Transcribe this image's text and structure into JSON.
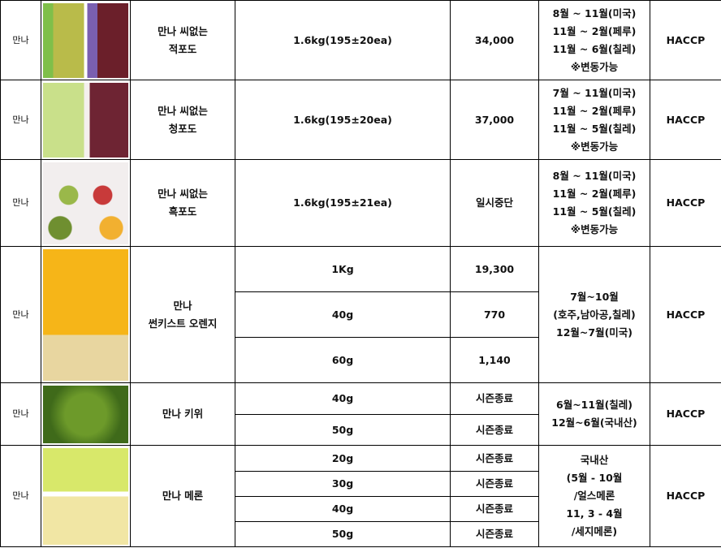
{
  "products": [
    {
      "brand": "만나",
      "name": [
        "만나 씨없는",
        "적포도"
      ],
      "image": "seedless-red-grape-packages",
      "specs": [
        {
          "spec": "1.6kg(195±20ea)",
          "price": "34,000"
        }
      ],
      "season": [
        "8월 ~ 11월(미국)",
        "11월 ~ 2월(페루)",
        "11월 ~ 6월(칠레)",
        "※변동가능"
      ],
      "cert": "HACCP"
    },
    {
      "brand": "만나",
      "name": [
        "만나 씨없는",
        "청포도"
      ],
      "image": "green-and-red-grapes",
      "specs": [
        {
          "spec": "1.6kg(195±20ea)",
          "price": "37,000"
        }
      ],
      "season": [
        "7월 ~ 11월(미국)",
        "11월 ~ 2월(페루)",
        "11월 ~ 5월(칠레)",
        "※변동가능"
      ],
      "cert": "HACCP"
    },
    {
      "brand": "만나",
      "name": [
        "만나 씨없는",
        "흑포도"
      ],
      "image": "fruit-cups",
      "specs": [
        {
          "spec": "1.6kg(195±21ea)",
          "price": "일시중단"
        }
      ],
      "season": [
        "8월 ~ 11월(미국)",
        "11월 ~ 2월(페루)",
        "11월 ~ 5월(칠레)",
        "※변동가능"
      ],
      "cert": "HACCP"
    },
    {
      "brand": "만나",
      "name": [
        "만나",
        "썬키스트 오렌지"
      ],
      "image": "orange-segments",
      "specs": [
        {
          "spec": "1Kg",
          "price": "19,300"
        },
        {
          "spec": "40g",
          "price": "770"
        },
        {
          "spec": "60g",
          "price": "1,140"
        }
      ],
      "season": [
        "7월~10월",
        "(호주,남아공,칠레)",
        "12월~7월(미국)"
      ],
      "cert": "HACCP"
    },
    {
      "brand": "만나",
      "name": [
        "만나 키위"
      ],
      "image": "kiwi-slices",
      "specs": [
        {
          "spec": "40g",
          "price": "시즌종료"
        },
        {
          "spec": "50g",
          "price": "시즌종료"
        }
      ],
      "season": [
        "6월~11월(칠레)",
        "12월~6월(국내산)"
      ],
      "cert": "HACCP"
    },
    {
      "brand": "만나",
      "name": [
        "만나 메론"
      ],
      "image": "melon-slices",
      "specs": [
        {
          "spec": "20g",
          "price": "시즌종료"
        },
        {
          "spec": "30g",
          "price": "시즌종료"
        },
        {
          "spec": "40g",
          "price": "시즌종료"
        },
        {
          "spec": "50g",
          "price": "시즌종료"
        }
      ],
      "season": [
        "국내산",
        "(5월 - 10월",
        "/얼스메론",
        "11, 3 - 4월",
        "/세지메론)"
      ],
      "cert": "HACCP"
    }
  ]
}
